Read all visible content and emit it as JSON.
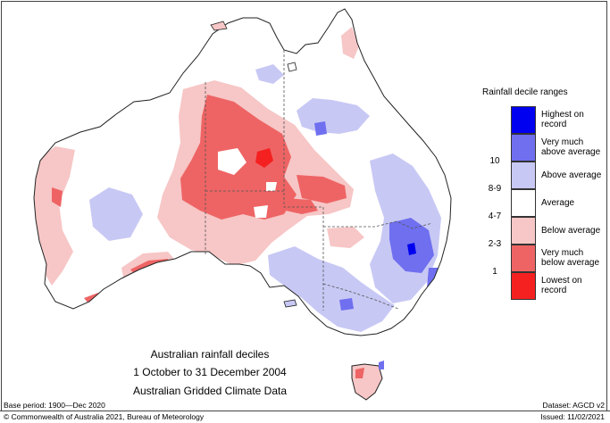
{
  "legend": {
    "title": "Rainfall decile ranges",
    "items": [
      {
        "range": "",
        "label_lines": [
          "Highest on",
          "record"
        ],
        "color": "#0000f0"
      },
      {
        "range": "10",
        "label_lines": [
          "Very much",
          "above average"
        ],
        "color": "#6f6ff0"
      },
      {
        "range": "8-9",
        "label_lines": [
          "Above average"
        ],
        "color": "#c8c8f5"
      },
      {
        "range": "4-7",
        "label_lines": [
          "Average"
        ],
        "color": "#ffffff"
      },
      {
        "range": "2-3",
        "label_lines": [
          "Below average"
        ],
        "color": "#f7c6c6"
      },
      {
        "range": "1",
        "label_lines": [
          "Very much",
          "below average"
        ],
        "color": "#ee6464"
      },
      {
        "range": "",
        "label_lines": [
          "Lowest on",
          "record"
        ],
        "color": "#f52020"
      }
    ]
  },
  "caption": {
    "line1": "Australian rainfall deciles",
    "line2": "1 October to 31 December 2004",
    "line3": "Australian Gridded Climate Data"
  },
  "footer": {
    "base_period": "Base period: 1900—Dec 2020",
    "dataset": "Dataset: AGCD v2",
    "copyright": "© Commonwealth of Australia 2021, Bureau of Meteorology",
    "issued": "Issued: 11/02/2021"
  }
}
